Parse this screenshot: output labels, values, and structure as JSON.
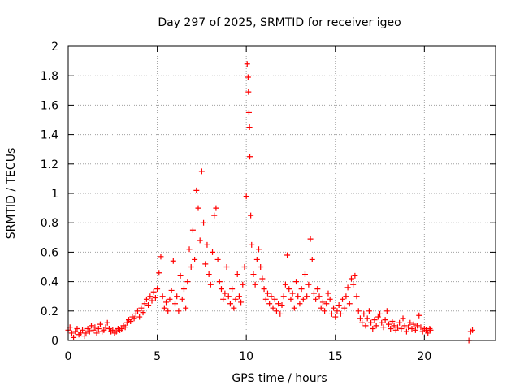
{
  "chart_data": {
    "type": "scatter",
    "title": "Day 297 of 2025, SRMTID for receiver igeo",
    "xlabel": "GPS time / hours",
    "ylabel": "SRMTID / TECUs",
    "xlim": [
      0,
      24
    ],
    "ylim": [
      0,
      2
    ],
    "grid": true,
    "marker": "+",
    "series": [
      {
        "name": "SRMTID",
        "color": "#ff0000",
        "points": [
          [
            0.0,
            0.07
          ],
          [
            0.1,
            0.09
          ],
          [
            0.2,
            0.05
          ],
          [
            0.3,
            0.02
          ],
          [
            0.4,
            0.06
          ],
          [
            0.5,
            0.08
          ],
          [
            0.6,
            0.04
          ],
          [
            0.7,
            0.05
          ],
          [
            0.8,
            0.07
          ],
          [
            0.9,
            0.03
          ],
          [
            1.0,
            0.05
          ],
          [
            1.1,
            0.08
          ],
          [
            1.2,
            0.06
          ],
          [
            1.3,
            0.1
          ],
          [
            1.4,
            0.07
          ],
          [
            1.5,
            0.09
          ],
          [
            1.6,
            0.05
          ],
          [
            1.7,
            0.08
          ],
          [
            1.8,
            0.11
          ],
          [
            1.9,
            0.06
          ],
          [
            2.0,
            0.07
          ],
          [
            2.1,
            0.09
          ],
          [
            2.2,
            0.12
          ],
          [
            2.3,
            0.08
          ],
          [
            2.4,
            0.06
          ],
          [
            2.5,
            0.07
          ],
          [
            2.6,
            0.05
          ],
          [
            2.7,
            0.06
          ],
          [
            2.8,
            0.08
          ],
          [
            2.9,
            0.07
          ],
          [
            3.0,
            0.08
          ],
          [
            3.1,
            0.1
          ],
          [
            3.2,
            0.09
          ],
          [
            3.3,
            0.12
          ],
          [
            3.4,
            0.14
          ],
          [
            3.5,
            0.13
          ],
          [
            3.6,
            0.16
          ],
          [
            3.7,
            0.15
          ],
          [
            3.8,
            0.18
          ],
          [
            3.9,
            0.2
          ],
          [
            4.0,
            0.16
          ],
          [
            4.1,
            0.22
          ],
          [
            4.2,
            0.19
          ],
          [
            4.3,
            0.25
          ],
          [
            4.4,
            0.28
          ],
          [
            4.5,
            0.24
          ],
          [
            4.6,
            0.3
          ],
          [
            4.7,
            0.27
          ],
          [
            4.8,
            0.33
          ],
          [
            4.9,
            0.29
          ],
          [
            5.0,
            0.35
          ],
          [
            5.1,
            0.46
          ],
          [
            5.2,
            0.57
          ],
          [
            5.3,
            0.3
          ],
          [
            5.4,
            0.22
          ],
          [
            5.5,
            0.26
          ],
          [
            5.6,
            0.2
          ],
          [
            5.7,
            0.28
          ],
          [
            5.8,
            0.34
          ],
          [
            5.9,
            0.54
          ],
          [
            6.0,
            0.25
          ],
          [
            6.1,
            0.3
          ],
          [
            6.2,
            0.2
          ],
          [
            6.3,
            0.44
          ],
          [
            6.4,
            0.28
          ],
          [
            6.5,
            0.35
          ],
          [
            6.6,
            0.22
          ],
          [
            6.7,
            0.4
          ],
          [
            6.8,
            0.62
          ],
          [
            6.9,
            0.5
          ],
          [
            7.0,
            0.75
          ],
          [
            7.1,
            0.55
          ],
          [
            7.2,
            1.02
          ],
          [
            7.3,
            0.9
          ],
          [
            7.4,
            0.68
          ],
          [
            7.5,
            1.15
          ],
          [
            7.6,
            0.8
          ],
          [
            7.7,
            0.52
          ],
          [
            7.8,
            0.65
          ],
          [
            7.9,
            0.45
          ],
          [
            8.0,
            0.38
          ],
          [
            8.1,
            0.6
          ],
          [
            8.2,
            0.85
          ],
          [
            8.3,
            0.9
          ],
          [
            8.4,
            0.55
          ],
          [
            8.5,
            0.4
          ],
          [
            8.6,
            0.35
          ],
          [
            8.7,
            0.28
          ],
          [
            8.8,
            0.32
          ],
          [
            8.9,
            0.5
          ],
          [
            9.0,
            0.3
          ],
          [
            9.1,
            0.25
          ],
          [
            9.2,
            0.35
          ],
          [
            9.3,
            0.22
          ],
          [
            9.4,
            0.28
          ],
          [
            9.5,
            0.45
          ],
          [
            9.6,
            0.3
          ],
          [
            9.7,
            0.26
          ],
          [
            9.8,
            0.38
          ],
          [
            9.9,
            0.5
          ],
          [
            10.0,
            0.98
          ],
          [
            10.05,
            1.88
          ],
          [
            10.1,
            1.79
          ],
          [
            10.12,
            1.69
          ],
          [
            10.15,
            1.55
          ],
          [
            10.18,
            1.45
          ],
          [
            10.2,
            1.25
          ],
          [
            10.25,
            0.85
          ],
          [
            10.3,
            0.65
          ],
          [
            10.4,
            0.45
          ],
          [
            10.5,
            0.38
          ],
          [
            10.6,
            0.55
          ],
          [
            10.7,
            0.62
          ],
          [
            10.8,
            0.5
          ],
          [
            10.9,
            0.42
          ],
          [
            11.0,
            0.35
          ],
          [
            11.1,
            0.28
          ],
          [
            11.2,
            0.32
          ],
          [
            11.3,
            0.25
          ],
          [
            11.4,
            0.3
          ],
          [
            11.5,
            0.22
          ],
          [
            11.6,
            0.28
          ],
          [
            11.7,
            0.2
          ],
          [
            11.8,
            0.25
          ],
          [
            11.9,
            0.18
          ],
          [
            12.0,
            0.24
          ],
          [
            12.1,
            0.3
          ],
          [
            12.2,
            0.38
          ],
          [
            12.3,
            0.58
          ],
          [
            12.4,
            0.35
          ],
          [
            12.5,
            0.28
          ],
          [
            12.6,
            0.32
          ],
          [
            12.7,
            0.22
          ],
          [
            12.8,
            0.4
          ],
          [
            12.9,
            0.3
          ],
          [
            13.0,
            0.25
          ],
          [
            13.1,
            0.35
          ],
          [
            13.2,
            0.28
          ],
          [
            13.3,
            0.45
          ],
          [
            13.4,
            0.3
          ],
          [
            13.5,
            0.38
          ],
          [
            13.6,
            0.69
          ],
          [
            13.7,
            0.55
          ],
          [
            13.8,
            0.32
          ],
          [
            13.9,
            0.28
          ],
          [
            14.0,
            0.35
          ],
          [
            14.1,
            0.3
          ],
          [
            14.2,
            0.22
          ],
          [
            14.3,
            0.26
          ],
          [
            14.4,
            0.2
          ],
          [
            14.5,
            0.25
          ],
          [
            14.6,
            0.32
          ],
          [
            14.7,
            0.28
          ],
          [
            14.8,
            0.18
          ],
          [
            14.9,
            0.22
          ],
          [
            15.0,
            0.16
          ],
          [
            15.1,
            0.2
          ],
          [
            15.2,
            0.24
          ],
          [
            15.3,
            0.18
          ],
          [
            15.4,
            0.28
          ],
          [
            15.5,
            0.22
          ],
          [
            15.6,
            0.3
          ],
          [
            15.7,
            0.36
          ],
          [
            15.8,
            0.25
          ],
          [
            15.9,
            0.42
          ],
          [
            16.0,
            0.38
          ],
          [
            16.1,
            0.44
          ],
          [
            16.2,
            0.3
          ],
          [
            16.3,
            0.2
          ],
          [
            16.4,
            0.15
          ],
          [
            16.5,
            0.12
          ],
          [
            16.6,
            0.18
          ],
          [
            16.7,
            0.1
          ],
          [
            16.8,
            0.15
          ],
          [
            16.9,
            0.2
          ],
          [
            17.0,
            0.12
          ],
          [
            17.1,
            0.08
          ],
          [
            17.2,
            0.14
          ],
          [
            17.3,
            0.1
          ],
          [
            17.4,
            0.16
          ],
          [
            17.5,
            0.18
          ],
          [
            17.6,
            0.12
          ],
          [
            17.7,
            0.09
          ],
          [
            17.8,
            0.14
          ],
          [
            17.9,
            0.2
          ],
          [
            18.0,
            0.11
          ],
          [
            18.1,
            0.08
          ],
          [
            18.2,
            0.13
          ],
          [
            18.3,
            0.1
          ],
          [
            18.4,
            0.07
          ],
          [
            18.5,
            0.09
          ],
          [
            18.6,
            0.12
          ],
          [
            18.7,
            0.08
          ],
          [
            18.8,
            0.15
          ],
          [
            18.9,
            0.1
          ],
          [
            19.0,
            0.06
          ],
          [
            19.1,
            0.09
          ],
          [
            19.2,
            0.12
          ],
          [
            19.3,
            0.08
          ],
          [
            19.4,
            0.11
          ],
          [
            19.5,
            0.07
          ],
          [
            19.6,
            0.1
          ],
          [
            19.7,
            0.17
          ],
          [
            19.8,
            0.09
          ],
          [
            19.9,
            0.06
          ],
          [
            20.0,
            0.08
          ],
          [
            20.1,
            0.07
          ],
          [
            20.2,
            0.05
          ],
          [
            20.3,
            0.08
          ],
          [
            20.35,
            0.07
          ],
          [
            22.5,
            0.0
          ],
          [
            22.6,
            0.06
          ],
          [
            22.7,
            0.07
          ]
        ]
      }
    ],
    "xticks": [
      0,
      5,
      10,
      15,
      20
    ],
    "xtick_labels": [
      "0",
      "5",
      "10",
      "15",
      "20"
    ],
    "yticks": [
      0,
      0.2,
      0.4,
      0.6,
      0.8,
      1.0,
      1.2,
      1.4,
      1.6,
      1.8,
      2.0
    ],
    "ytick_labels": [
      "0",
      "0.2",
      "0.4",
      "0.6",
      "0.8",
      "1",
      "1.2",
      "1.4",
      "1.6",
      "1.8",
      "2"
    ]
  }
}
